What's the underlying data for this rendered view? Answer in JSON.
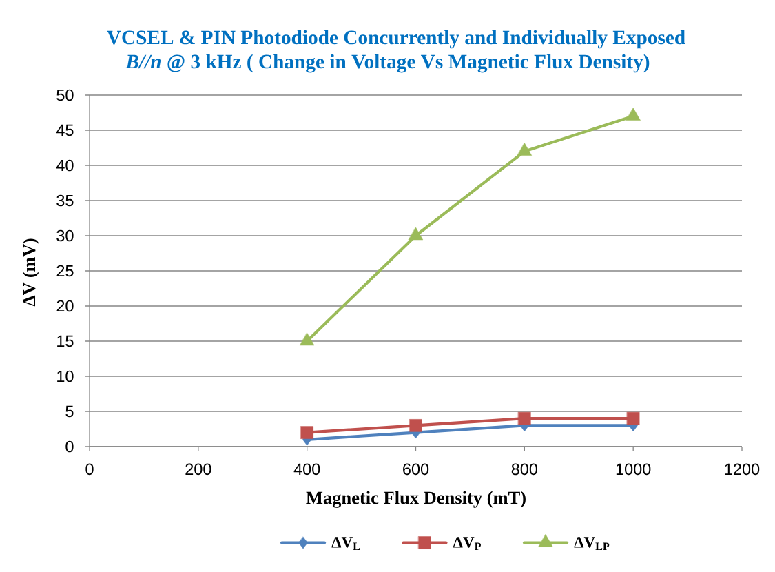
{
  "chart_data": {
    "type": "line",
    "title": "VCSEL & PIN Photodiode Concurrently and Individually Exposed",
    "subtitle": "*B//n* @ 3 kHz ( Change in Voltage Vs Magnetic Flux Density)",
    "xlabel": "Magnetic Flux Density (mT)",
    "ylabel": "ΔV (mV)",
    "x": [
      400,
      600,
      800,
      1000
    ],
    "series": [
      {
        "name": "ΔV$_{L}$",
        "color": "#4f81bd",
        "marker": "diamond",
        "values": [
          1,
          2,
          3,
          3
        ]
      },
      {
        "name": "ΔV$_{P}$",
        "color": "#c0504d",
        "marker": "square",
        "values": [
          2,
          3,
          4,
          4
        ]
      },
      {
        "name": "ΔV$_{LP}$",
        "color": "#9bbb59",
        "marker": "triangle",
        "values": [
          15,
          30,
          42,
          47
        ]
      }
    ],
    "xlim": [
      0,
      1200
    ],
    "xticks": [
      0,
      200,
      400,
      600,
      800,
      1000,
      1200
    ],
    "ylim": [
      0,
      50
    ],
    "yticks": [
      0,
      5,
      10,
      15,
      20,
      25,
      30,
      35,
      40,
      45,
      50
    ],
    "grid": "y",
    "legend": "bottom",
    "line_style": "solid"
  }
}
